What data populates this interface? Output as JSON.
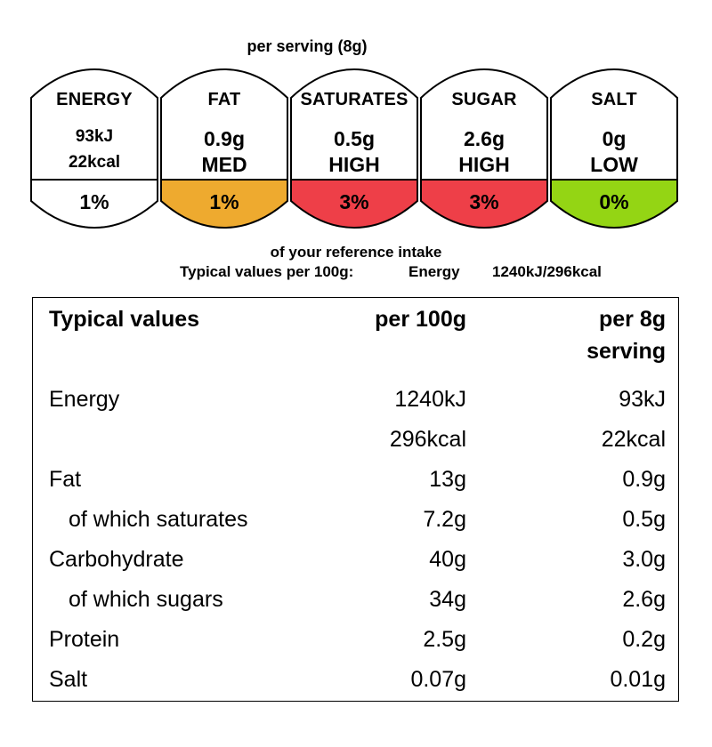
{
  "header": {
    "per_serving": "per serving  (8g)"
  },
  "badges": [
    {
      "name": "ENERGY",
      "amount": "93kJ",
      "level": "22kcal",
      "percent": "1%",
      "color": "#ffffff"
    },
    {
      "name": "FAT",
      "amount": "0.9g",
      "level": "MED",
      "percent": "1%",
      "color": "#eeaa2f"
    },
    {
      "name": "SATURATES",
      "amount": "0.5g",
      "level": "HIGH",
      "percent": "3%",
      "color": "#ee3f48"
    },
    {
      "name": "SUGAR",
      "amount": "2.6g",
      "level": "HIGH",
      "percent": "3%",
      "color": "#ee3f48"
    },
    {
      "name": "SALT",
      "amount": "0g",
      "level": "LOW",
      "percent": "0%",
      "color": "#94d514"
    }
  ],
  "reference": {
    "intake": "of your reference intake",
    "typical_label": "Typical values per 100g:",
    "energy_label": "Energy",
    "energy_value": "1240kJ/296kcal"
  },
  "table": {
    "headers": {
      "col1": "Typical values",
      "col2": "per 100g",
      "col3_line1": "per 8g",
      "col3_line2": "serving"
    },
    "rows": [
      {
        "label": "Energy",
        "per100": "1240kJ",
        "serving": "93kJ"
      },
      {
        "label": "",
        "per100": "296kcal",
        "serving": "22kcal"
      },
      {
        "label": "Fat",
        "per100": "13g",
        "serving": "0.9g"
      },
      {
        "label": "of which saturates",
        "per100": "7.2g",
        "serving": "0.5g"
      },
      {
        "label": "Carbohydrate",
        "per100": "40g",
        "serving": "3.0g"
      },
      {
        "label": "of which sugars",
        "per100": "34g",
        "serving": "2.6g"
      },
      {
        "label": "Protein",
        "per100": "2.5g",
        "serving": "0.2g"
      },
      {
        "label": "Salt",
        "per100": "0.07g",
        "serving": "0.01g"
      }
    ]
  }
}
